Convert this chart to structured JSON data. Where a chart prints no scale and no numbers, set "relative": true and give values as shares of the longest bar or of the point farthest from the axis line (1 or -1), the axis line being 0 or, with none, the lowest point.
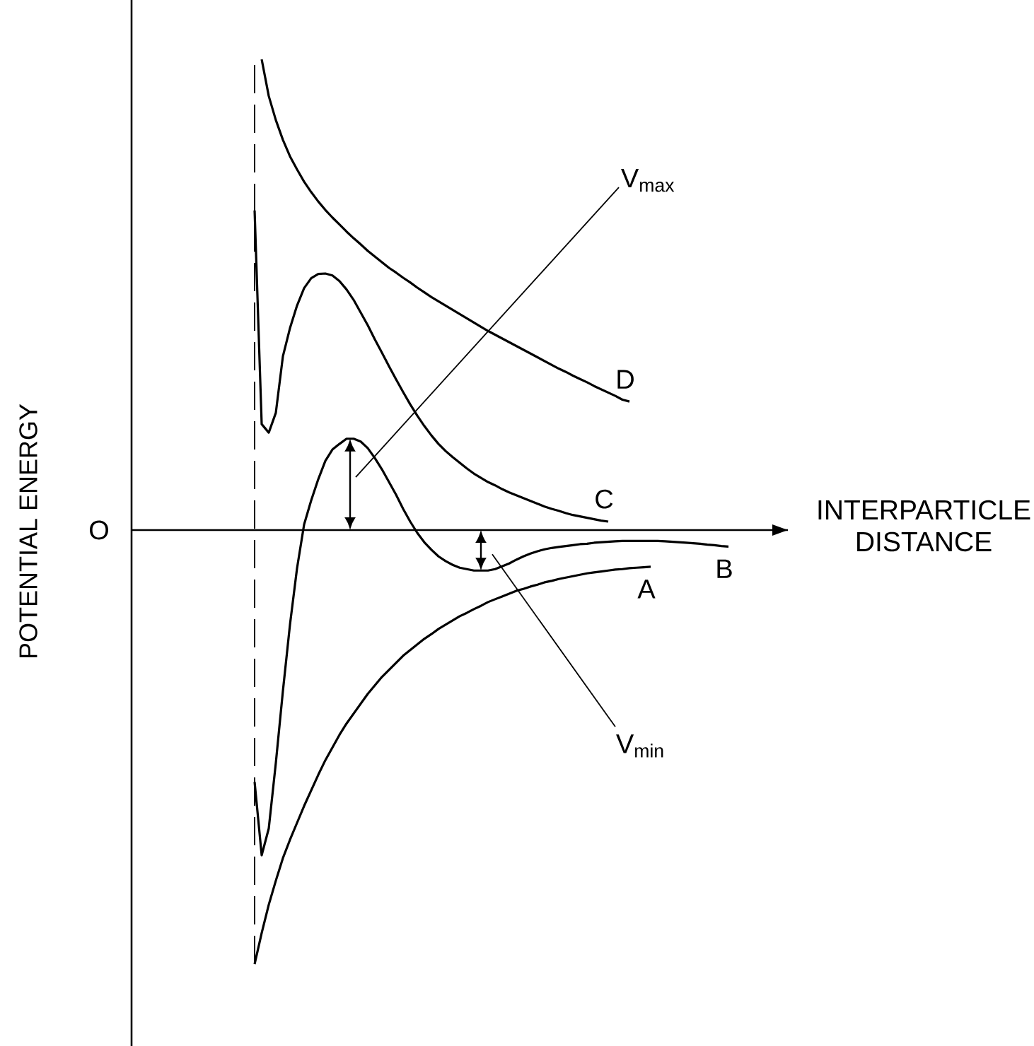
{
  "chart_data": {
    "type": "line",
    "relative": true,
    "xlabel": "INTERPARTICLE DISTANCE",
    "legend": false,
    "marker": "none",
    "line_style": "solid",
    "categories": [
      null,
      null,
      null,
      null,
      null,
      null,
      null,
      null,
      null,
      null,
      null,
      null,
      null,
      null,
      null,
      null,
      null,
      null,
      null,
      null,
      null,
      null,
      null,
      null,
      null,
      null,
      null,
      null,
      null,
      null,
      null,
      null,
      null,
      null,
      null,
      null,
      null,
      null,
      null,
      null,
      null,
      null,
      null,
      null,
      null,
      null,
      null,
      null,
      null,
      null,
      null,
      null,
      null,
      null,
      null,
      null,
      null,
      null,
      null,
      null,
      null,
      null,
      null,
      null,
      null,
      null,
      null,
      null
    ],
    "series": [
      {
        "name": "A",
        "color": "#000000",
        "values": [
          -0.922,
          -0.856,
          -0.796,
          -0.745,
          -0.697,
          -0.658,
          -0.622,
          -0.586,
          -0.553,
          -0.52,
          -0.489,
          -0.462,
          -0.435,
          -0.411,
          -0.39,
          -0.369,
          -0.348,
          -0.33,
          -0.312,
          -0.297,
          -0.282,
          -0.267,
          -0.255,
          -0.243,
          -0.231,
          -0.221,
          -0.21,
          -0.201,
          -0.192,
          -0.183,
          -0.176,
          -0.168,
          -0.161,
          -0.153,
          -0.147,
          -0.141,
          -0.135,
          -0.129,
          -0.125,
          -0.12,
          -0.116,
          -0.111,
          -0.108,
          -0.104,
          -0.101,
          -0.098,
          -0.095,
          -0.092,
          -0.09,
          -0.088,
          -0.086,
          -0.084,
          -0.083,
          -0.081,
          -0.08,
          -0.079,
          -0.078,
          null,
          null,
          null,
          null,
          null,
          null,
          null,
          null,
          null,
          null,
          null
        ]
      },
      {
        "name": "B",
        "color": "#000000",
        "values": [
          -0.535,
          -0.691,
          -0.634,
          -0.495,
          -0.342,
          -0.201,
          -0.081,
          0.012,
          0.063,
          0.108,
          0.147,
          0.171,
          0.183,
          0.194,
          0.194,
          0.188,
          0.174,
          0.153,
          0.129,
          0.102,
          0.075,
          0.045,
          0.018,
          -0.006,
          -0.026,
          -0.042,
          -0.056,
          -0.066,
          -0.074,
          -0.08,
          -0.083,
          -0.086,
          -0.086,
          -0.086,
          -0.083,
          -0.077,
          -0.071,
          -0.063,
          -0.056,
          -0.05,
          -0.045,
          -0.041,
          -0.038,
          -0.036,
          -0.034,
          -0.032,
          -0.03,
          -0.029,
          -0.027,
          -0.026,
          -0.025,
          -0.024,
          -0.023,
          -0.023,
          -0.023,
          -0.023,
          -0.023,
          -0.023,
          -0.024,
          -0.025,
          -0.026,
          -0.027,
          -0.028,
          -0.029,
          -0.031,
          -0.032,
          -0.034,
          -0.035
        ]
      },
      {
        "name": "C",
        "color": "#000000",
        "values": [
          0.679,
          0.225,
          0.207,
          0.249,
          0.369,
          0.429,
          0.477,
          0.514,
          0.535,
          0.544,
          0.545,
          0.541,
          0.529,
          0.511,
          0.489,
          0.462,
          0.435,
          0.405,
          0.377,
          0.348,
          0.32,
          0.293,
          0.267,
          0.243,
          0.221,
          0.201,
          0.183,
          0.168,
          0.155,
          0.143,
          0.131,
          0.12,
          0.111,
          0.102,
          0.095,
          0.087,
          0.08,
          0.074,
          0.068,
          0.062,
          0.056,
          0.05,
          0.045,
          0.041,
          0.036,
          0.032,
          0.029,
          0.026,
          0.023,
          0.02,
          0.018,
          null,
          null,
          null,
          null,
          null,
          null,
          null,
          null,
          null,
          null,
          null,
          null,
          null,
          null,
          null,
          null,
          null
        ]
      },
      {
        "name": "D",
        "color": "#000000",
        "values": [
          null,
          1.0,
          0.922,
          0.871,
          0.829,
          0.794,
          0.766,
          0.74,
          0.718,
          0.698,
          0.68,
          0.664,
          0.649,
          0.634,
          0.62,
          0.607,
          0.593,
          0.581,
          0.569,
          0.557,
          0.547,
          0.536,
          0.526,
          0.515,
          0.505,
          0.495,
          0.486,
          0.477,
          0.468,
          0.459,
          0.45,
          0.441,
          0.432,
          0.423,
          0.415,
          0.407,
          0.399,
          0.391,
          0.383,
          0.375,
          0.367,
          0.359,
          0.351,
          0.343,
          0.336,
          0.328,
          0.321,
          0.314,
          0.306,
          0.299,
          0.292,
          0.285,
          0.277,
          0.273,
          null,
          null,
          null,
          null,
          null,
          null,
          null,
          null,
          null,
          null,
          null,
          null,
          null,
          null
        ]
      }
    ],
    "annotations": [
      "O",
      "V$_{max}$",
      "V$_{min}$",
      "POTENTIAL ENERGY"
    ]
  }
}
